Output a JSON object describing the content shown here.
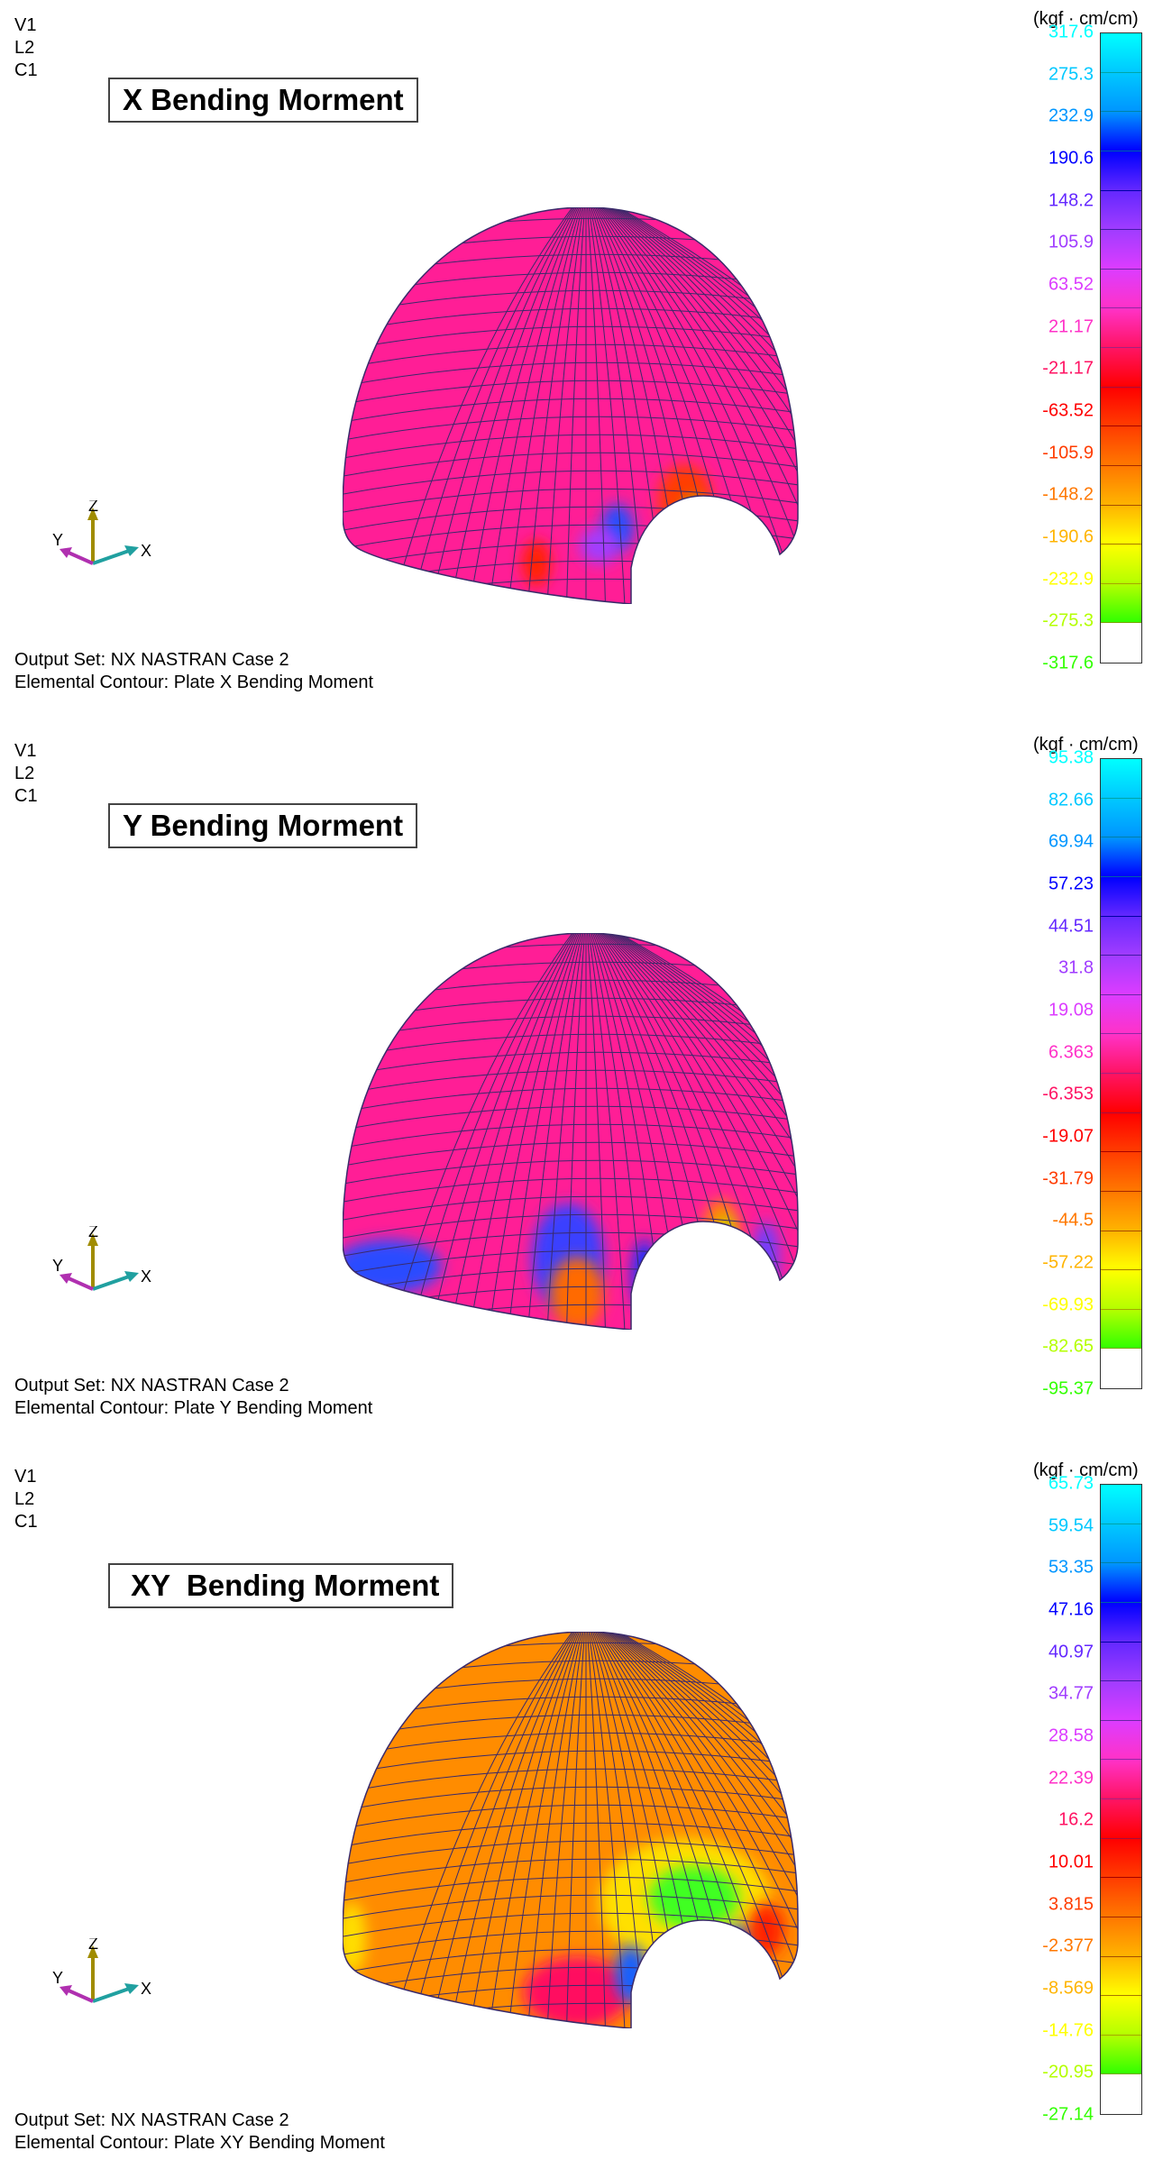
{
  "view_labels": [
    "V1",
    "L2",
    "C1"
  ],
  "units": "(kgf · cm/cm)",
  "axis": {
    "z": "Z",
    "y": "Y",
    "x": "X"
  },
  "colors": {
    "levels": [
      "#00ffff",
      "#00c8ff",
      "#0096ff",
      "#0032ff",
      "#6428ff",
      "#a03cff",
      "#dc3cff",
      "#ff32c8",
      "#ff1478",
      "#ff0000",
      "#ff3200",
      "#ff6e00",
      "#ffa000",
      "#ffd200",
      "#ffff00",
      "#c8ff00",
      "#32ff00"
    ]
  },
  "panels": [
    {
      "title": "X Bending Morment",
      "footer1": "Output Set: NX NASTRAN Case 2",
      "footer2": "Elemental Contour: Plate X Bending Moment",
      "legend": [
        "317.6",
        "275.3",
        "232.9",
        "190.6",
        "148.2",
        "105.9",
        "63.52",
        "21.17",
        "-21.17",
        "-63.52",
        "-105.9",
        "-148.2",
        "-190.6",
        "-232.9",
        "-275.3",
        "-317.6"
      ],
      "legend_colors": [
        "#00ffff",
        "#00c8ff",
        "#0096ff",
        "#0000ff",
        "#6428ff",
        "#a03cff",
        "#dc3cff",
        "#ff32c8",
        "#ff1464",
        "#ff0000",
        "#ff3c00",
        "#ff7800",
        "#ffb400",
        "#ffff00",
        "#b4ff00",
        "#32ff00"
      ],
      "base_color": "#ff1e96"
    },
    {
      "title": "Y Bending Morment",
      "footer1": "Output Set: NX NASTRAN Case 2",
      "footer2": "Elemental Contour: Plate Y Bending Moment",
      "legend": [
        "95.38",
        "82.66",
        "69.94",
        "57.23",
        "44.51",
        "31.8",
        "19.08",
        "6.363",
        "-6.353",
        "-19.07",
        "-31.79",
        "-44.5",
        "-57.22",
        "-69.93",
        "-82.65",
        "-95.37"
      ],
      "legend_colors": [
        "#00ffff",
        "#00c8ff",
        "#0096ff",
        "#0000ff",
        "#6428ff",
        "#a03cff",
        "#dc3cff",
        "#ff32c8",
        "#ff1464",
        "#ff0000",
        "#ff3c00",
        "#ff7800",
        "#ffb400",
        "#ffff00",
        "#b4ff00",
        "#32ff00"
      ],
      "base_color": "#ff1e96"
    },
    {
      "title": " XY  Bending Morment",
      "footer1": "Output Set: NX NASTRAN Case 2",
      "footer2": "Elemental Contour: Plate XY Bending Moment",
      "legend": [
        "65.73",
        "59.54",
        "53.35",
        "47.16",
        "40.97",
        "34.77",
        "28.58",
        "22.39",
        "16.2",
        "10.01",
        "3.815",
        "-2.377",
        "-8.569",
        "-14.76",
        "-20.95",
        "-27.14"
      ],
      "legend_colors": [
        "#00ffff",
        "#00c8ff",
        "#0096ff",
        "#0000ff",
        "#6428ff",
        "#a03cff",
        "#dc3cff",
        "#ff32c8",
        "#ff1464",
        "#ff0000",
        "#ff3c00",
        "#ff7800",
        "#ffb400",
        "#ffff00",
        "#b4ff00",
        "#32ff00"
      ],
      "base_color": "#ff8c00"
    }
  ]
}
